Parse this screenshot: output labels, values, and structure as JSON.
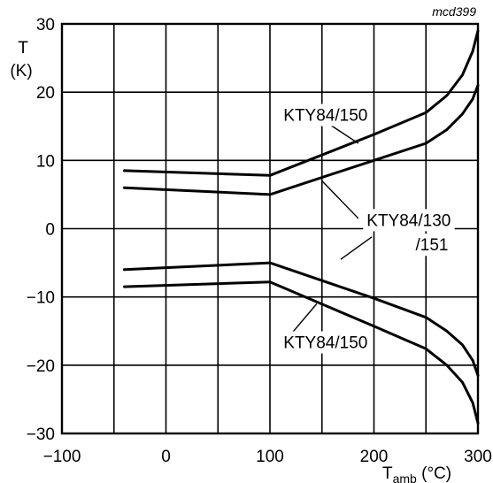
{
  "chart_data": {
    "type": "line",
    "reference": "mcd399",
    "ylabel_symbol": "T",
    "ylabel_unit": "(K)",
    "xlabel_main": "T",
    "xlabel_sub": "amb",
    "xlabel_unit": " (°C)",
    "xlim": [
      -100,
      300
    ],
    "ylim": [
      -30,
      30
    ],
    "xticks": [
      -100,
      0,
      100,
      200,
      300
    ],
    "xtick_labels": [
      "−100",
      "0",
      "100",
      "200",
      "300"
    ],
    "yticks": [
      -30,
      -20,
      -10,
      0,
      10,
      20,
      30
    ],
    "ytick_labels": [
      "−30",
      "−20",
      "−10",
      "0",
      "10",
      "20",
      "30"
    ],
    "x_gridlines": [
      -100,
      -50,
      0,
      50,
      100,
      150,
      200,
      250,
      300
    ],
    "y_gridlines": [
      -30,
      -20,
      -10,
      0,
      10,
      20,
      30
    ],
    "grid": true,
    "series": [
      {
        "x": [
          -40,
          100,
          200,
          250,
          270,
          285,
          295,
          300
        ],
        "y": [
          8.5,
          7.8,
          13.8,
          17.0,
          19.5,
          22.5,
          26.0,
          29.0
        ]
      },
      {
        "x": [
          -40,
          100,
          200,
          250,
          270,
          285,
          295,
          300
        ],
        "y": [
          6.0,
          5.0,
          10.0,
          12.5,
          14.5,
          16.8,
          19.0,
          21.0
        ]
      },
      {
        "x": [
          -40,
          100,
          200,
          250,
          270,
          285,
          295,
          300
        ],
        "y": [
          -6.0,
          -5.0,
          -10.2,
          -13.0,
          -15.0,
          -17.0,
          -19.3,
          -21.5
        ]
      },
      {
        "x": [
          -40,
          100,
          200,
          250,
          270,
          285,
          295,
          300
        ],
        "y": [
          -8.5,
          -7.8,
          -14.3,
          -17.6,
          -20.0,
          -22.5,
          -25.5,
          -28.5
        ]
      }
    ],
    "annotations": [
      {
        "text": "KTY84/150",
        "x": 113,
        "y": 15.8
      },
      {
        "text": "KTY84/130",
        "x": 193,
        "y": 0.4
      },
      {
        "text": "/151",
        "x": 240,
        "y": -3.2
      },
      {
        "text": "KTY84/150",
        "x": 113,
        "y": -17.5
      }
    ]
  }
}
